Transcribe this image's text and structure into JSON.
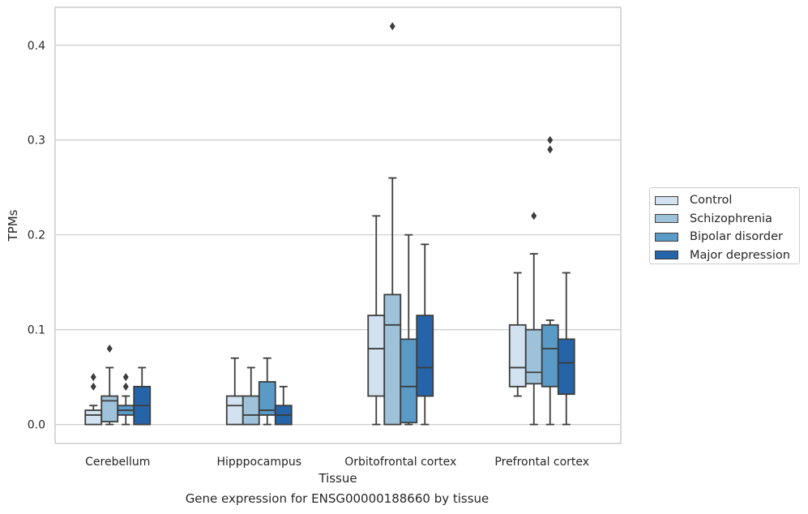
{
  "chart_data": {
    "type": "box",
    "xlabel": "Tissue",
    "ylabel": "TPMs",
    "caption": "Gene expression for ENSG00000188660 by tissue",
    "categories": [
      "Cerebellum",
      "Hipppocampus",
      "Orbitofrontal cortex",
      "Prefrontal cortex"
    ],
    "ylim": [
      -0.02,
      0.44
    ],
    "yticks": [
      "0.0",
      "0.1",
      "0.2",
      "0.3",
      "0.4"
    ],
    "grid": true,
    "legend_position": "right",
    "series": [
      {
        "name": "Control",
        "color": "#d3e2f1",
        "boxes": [
          {
            "whisker_low": 0.0,
            "q1": 0.0,
            "median": 0.01,
            "q3": 0.015,
            "whisker_high": 0.02,
            "outliers": [
              0.04,
              0.05
            ]
          },
          {
            "whisker_low": 0.0,
            "q1": 0.0,
            "median": 0.02,
            "q3": 0.03,
            "whisker_high": 0.07,
            "outliers": []
          },
          {
            "whisker_low": 0.0,
            "q1": 0.03,
            "median": 0.08,
            "q3": 0.115,
            "whisker_high": 0.22,
            "outliers": []
          },
          {
            "whisker_low": 0.03,
            "q1": 0.04,
            "median": 0.06,
            "q3": 0.105,
            "whisker_high": 0.16,
            "outliers": []
          }
        ]
      },
      {
        "name": "Schizophrenia",
        "color": "#9ec2d9",
        "boxes": [
          {
            "whisker_low": 0.0,
            "q1": 0.003,
            "median": 0.025,
            "q3": 0.03,
            "whisker_high": 0.06,
            "outliers": [
              0.08
            ]
          },
          {
            "whisker_low": 0.0,
            "q1": 0.0,
            "median": 0.01,
            "q3": 0.03,
            "whisker_high": 0.06,
            "outliers": []
          },
          {
            "whisker_low": 0.0,
            "q1": 0.0,
            "median": 0.105,
            "q3": 0.137,
            "whisker_high": 0.26,
            "outliers": [
              0.42
            ]
          },
          {
            "whisker_low": 0.0,
            "q1": 0.043,
            "median": 0.055,
            "q3": 0.1,
            "whisker_high": 0.18,
            "outliers": [
              0.22
            ]
          }
        ]
      },
      {
        "name": "Bipolar disorder",
        "color": "#5a9ac6",
        "boxes": [
          {
            "whisker_low": 0.0,
            "q1": 0.01,
            "median": 0.015,
            "q3": 0.02,
            "whisker_high": 0.03,
            "outliers": [
              0.04,
              0.05
            ]
          },
          {
            "whisker_low": 0.0,
            "q1": 0.01,
            "median": 0.015,
            "q3": 0.045,
            "whisker_high": 0.07,
            "outliers": []
          },
          {
            "whisker_low": 0.0,
            "q1": 0.002,
            "median": 0.04,
            "q3": 0.09,
            "whisker_high": 0.2,
            "outliers": []
          },
          {
            "whisker_low": 0.0,
            "q1": 0.04,
            "median": 0.08,
            "q3": 0.105,
            "whisker_high": 0.11,
            "outliers": [
              0.29,
              0.3
            ]
          }
        ]
      },
      {
        "name": "Major depression",
        "color": "#2564a9",
        "boxes": [
          {
            "whisker_low": 0.0,
            "q1": 0.0,
            "median": 0.02,
            "q3": 0.04,
            "whisker_high": 0.06,
            "outliers": []
          },
          {
            "whisker_low": 0.0,
            "q1": 0.0,
            "median": 0.01,
            "q3": 0.02,
            "whisker_high": 0.04,
            "outliers": []
          },
          {
            "whisker_low": 0.0,
            "q1": 0.03,
            "median": 0.06,
            "q3": 0.115,
            "whisker_high": 0.19,
            "outliers": []
          },
          {
            "whisker_low": 0.0,
            "q1": 0.032,
            "median": 0.065,
            "q3": 0.09,
            "whisker_high": 0.16,
            "outliers": []
          }
        ]
      }
    ]
  }
}
